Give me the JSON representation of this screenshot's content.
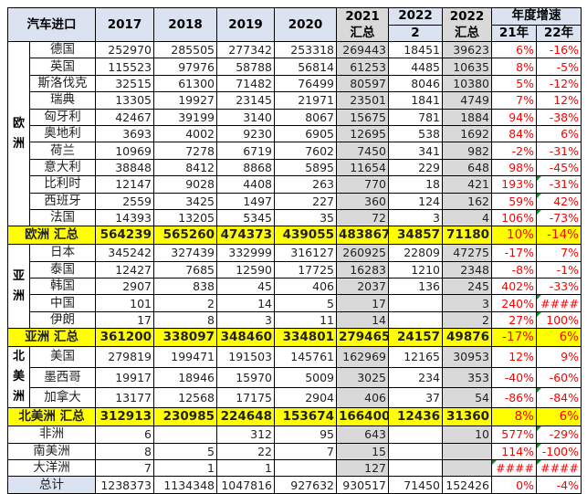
{
  "header": {
    "title": "汽车进口",
    "cols": [
      "2017",
      "2018",
      "2019",
      "2020"
    ],
    "c2021": "2021 汇总",
    "c2022a_top": "2022",
    "c2022a_bot": "2",
    "c2022b": "2022 汇总",
    "growth": "年度增速",
    "g21": "21年",
    "g22": "22年"
  },
  "colors": {
    "header_bg": "#dbe3f1",
    "subtotal_bg": "#ffff00",
    "shaded": "#d9d9d9",
    "pct": "#ff0000"
  },
  "groups": [
    {
      "region": "欧洲",
      "rows": [
        [
          "德国",
          "252970",
          "285505",
          "277342",
          "253318",
          "269443",
          "18451",
          "39623",
          "6%",
          "-16%"
        ],
        [
          "英国",
          "115523",
          "97976",
          "58788",
          "56814",
          "61253",
          "4485",
          "10635",
          "8%",
          "-5%"
        ],
        [
          "斯洛伐克",
          "32515",
          "61300",
          "71482",
          "76499",
          "80597",
          "8046",
          "10380",
          "5%",
          "-12%"
        ],
        [
          "瑞典",
          "13305",
          "19927",
          "23145",
          "21971",
          "23501",
          "1841",
          "4749",
          "7%",
          "12%"
        ],
        [
          "匈牙利",
          "42467",
          "39199",
          "3140",
          "8067",
          "15675",
          "781",
          "1884",
          "94%",
          "-38%"
        ],
        [
          "奥地利",
          "3693",
          "4002",
          "9230",
          "6905",
          "12695",
          "538",
          "1692",
          "84%",
          "6%"
        ],
        [
          "荷兰",
          "10969",
          "7278",
          "6719",
          "7602",
          "7450",
          "341",
          "982",
          "-2%",
          "-31%"
        ],
        [
          "意大利",
          "38848",
          "8412",
          "8868",
          "5895",
          "11654",
          "229",
          "648",
          "98%",
          "-45%"
        ],
        [
          "比利时",
          "12147",
          "9028",
          "4408",
          "263",
          "770",
          "18",
          "421",
          "193%",
          "-31%"
        ],
        [
          "西班牙",
          "2559",
          "3425",
          "1497",
          "227",
          "360",
          "124",
          "162",
          "59%",
          "42%"
        ],
        [
          "法国",
          "14393",
          "13205",
          "5345",
          "35",
          "72",
          "3",
          "4",
          "106%",
          "-73%"
        ]
      ],
      "flags": [
        8,
        9,
        10
      ],
      "subtotal": [
        "欧洲 汇总",
        "564239",
        "565260",
        "474373",
        "439055",
        "483867",
        "34857",
        "71180",
        "10%",
        "-14%"
      ]
    },
    {
      "region": "亚洲",
      "rows": [
        [
          "日本",
          "345242",
          "327439",
          "332999",
          "316127",
          "260925",
          "22809",
          "47275",
          "-17%",
          "7%"
        ],
        [
          "泰国",
          "12427",
          "7685",
          "12590",
          "17725",
          "16283",
          "1210",
          "2348",
          "-8%",
          "-1%"
        ],
        [
          "韩国",
          "2907",
          "838",
          "45",
          "406",
          "2037",
          "136",
          "245",
          "402%",
          "-33%"
        ],
        [
          "中国",
          "101",
          "2",
          "14",
          "5",
          "17",
          "",
          "3",
          "240%",
          "####"
        ],
        [
          "伊朗",
          "17",
          "8",
          "3",
          "11",
          "14",
          "",
          "2",
          "27%",
          "100%"
        ]
      ],
      "flags": [
        3,
        4
      ],
      "subtotal": [
        "亚洲 汇总",
        "361200",
        "338097",
        "348460",
        "334801",
        "279465",
        "24157",
        "49876",
        "-17%",
        "6%"
      ]
    },
    {
      "region": "北美洲",
      "rows": [
        [
          "美国",
          "279819",
          "199471",
          "191503",
          "145761",
          "162969",
          "12165",
          "30953",
          "12%",
          "9%"
        ],
        [
          "墨西哥",
          "19917",
          "18946",
          "15970",
          "5009",
          "3025",
          "234",
          "353",
          "-40%",
          "-60%"
        ],
        [
          "加拿大",
          "13177",
          "12568",
          "17175",
          "2904",
          "406",
          "37",
          "54",
          "-86%",
          "-84%"
        ]
      ],
      "flags": [
        2
      ],
      "subtotal": [
        "北美洲 汇总",
        "312913",
        "230985",
        "224648",
        "153674",
        "166400",
        "12436",
        "31360",
        "8%",
        "6%"
      ]
    }
  ],
  "others": [
    [
      "非洲",
      "6",
      "",
      "312",
      "95",
      "643",
      "",
      "10",
      "577%",
      "-29%"
    ],
    [
      "南美洲",
      "8",
      "5",
      "22",
      "7",
      "15",
      "",
      "",
      "114%",
      "-100%"
    ],
    [
      "大洋洲",
      "7",
      "1",
      "1",
      "",
      "127",
      "",
      "",
      "####",
      "####"
    ]
  ],
  "total": [
    "总计",
    "1238373",
    "1134348",
    "1047816",
    "927632",
    "930517",
    "71450",
    "152426",
    "0%",
    "-4%"
  ]
}
